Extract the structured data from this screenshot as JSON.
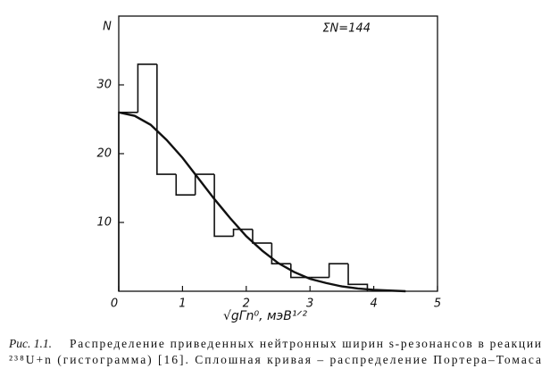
{
  "chart_data": {
    "type": "histogram",
    "y_label": "N",
    "x_label": "√gΓn⁰, мэВ¹ᐟ²",
    "annotation": "ΣN=144",
    "bins": [
      0,
      0.3,
      0.6,
      0.9,
      1.2,
      1.5,
      1.8,
      2.1,
      2.4,
      2.7,
      3.0,
      3.3,
      3.6,
      3.9
    ],
    "counts": [
      26,
      33,
      17,
      14,
      17,
      8,
      9,
      7,
      4,
      2,
      2,
      4,
      1
    ],
    "curve": {
      "x": [
        0,
        0.25,
        0.5,
        0.75,
        1,
        1.25,
        1.5,
        1.75,
        2,
        2.25,
        2.5,
        2.75,
        3,
        3.25,
        3.5,
        3.75,
        4,
        4.25,
        4.5
      ],
      "values": [
        26,
        25.5,
        24.2,
        22,
        19.4,
        16.4,
        13.4,
        10.6,
        8,
        5.9,
        4.1,
        2.8,
        1.8,
        1.2,
        0.7,
        0.4,
        0.2,
        0.1,
        0
      ]
    },
    "color": "#111111",
    "xlim": [
      0,
      5
    ],
    "xticks": [
      0,
      1,
      2,
      3,
      4,
      5
    ],
    "ylim": [
      0,
      40
    ],
    "yticks": [
      10,
      20,
      30
    ],
    "caption": {
      "label": "Рис. 1.1.",
      "line1": "Распределение приведенных нейтронных ширин s-резонансов в реакции",
      "line2": "²³⁸U+n  (гистограмма)  [16]. Сплошная кривая – распределение Портера–Томаса"
    }
  }
}
